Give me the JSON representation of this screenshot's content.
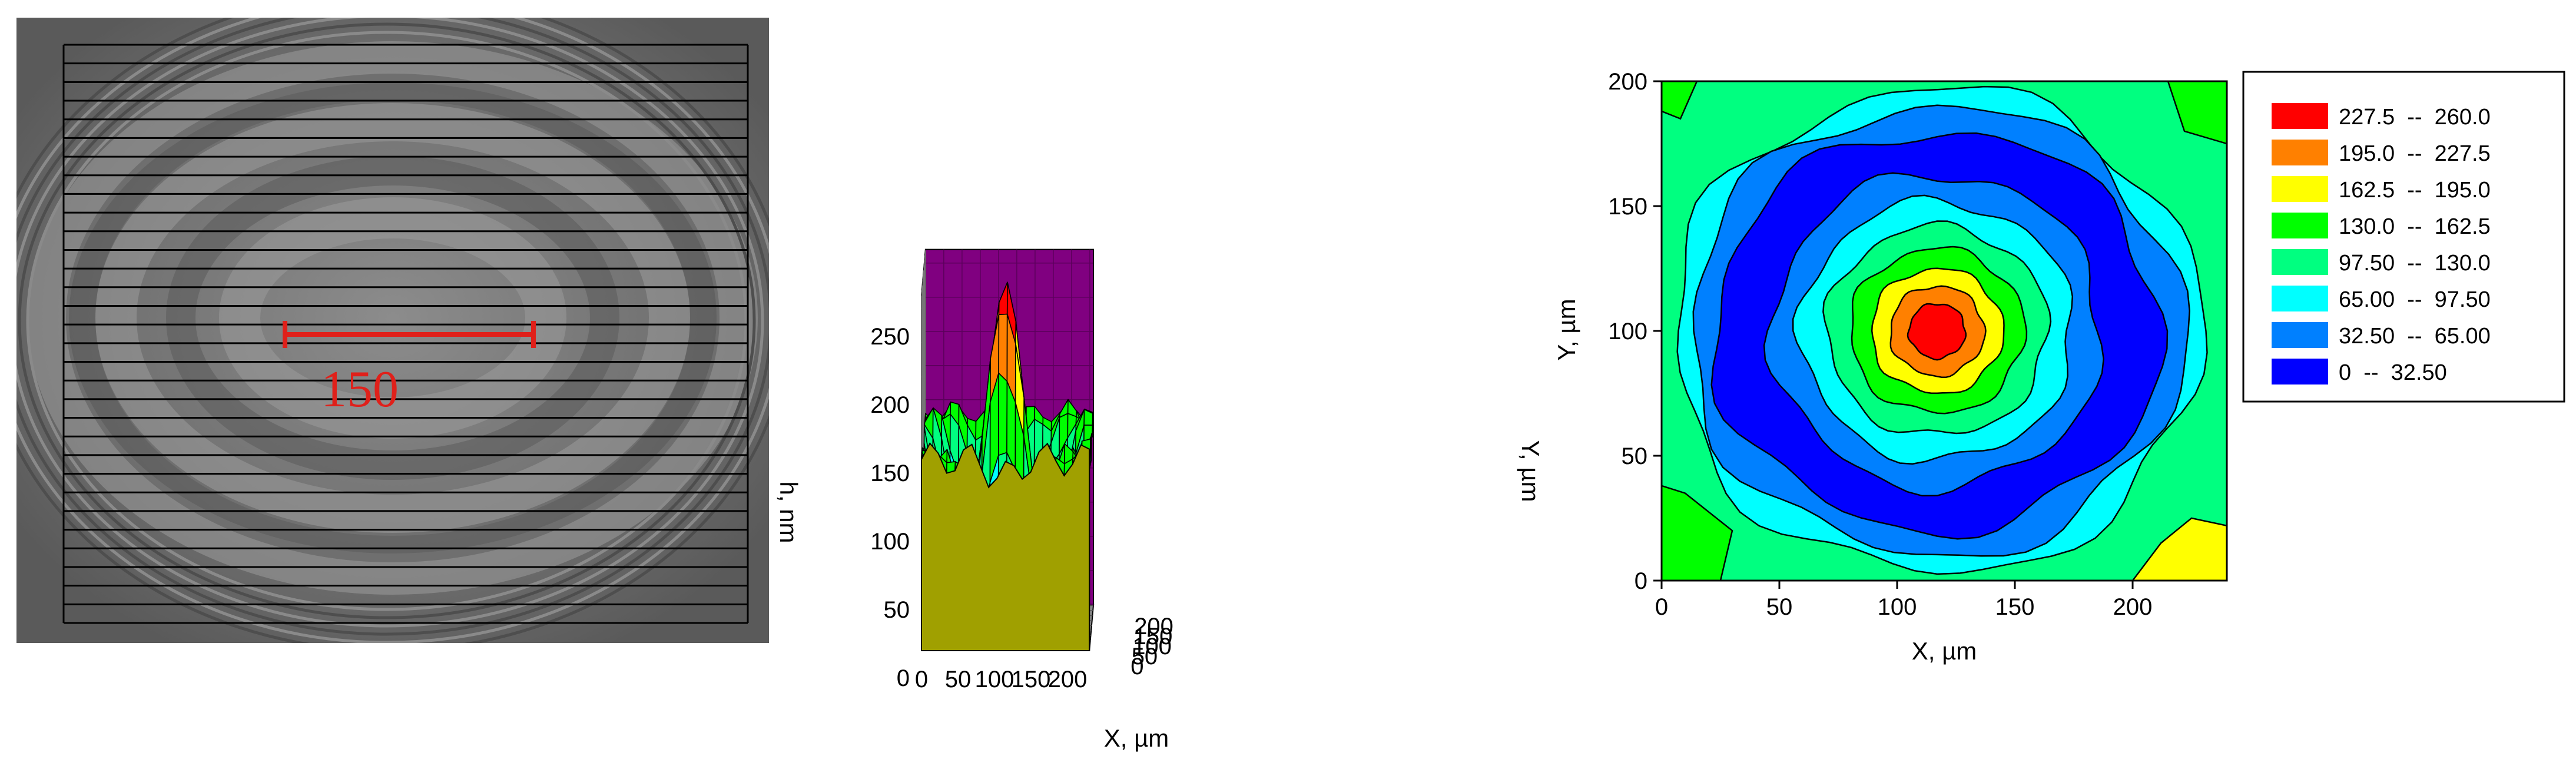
{
  "chart_data": [
    {
      "type": "image",
      "scale_bar": {
        "label": "150",
        "color": "#e0201a"
      },
      "scan_lines": 31
    },
    {
      "type": "surface3d",
      "xlabel": "X, µm",
      "ylabel": "Y, µm",
      "zlabel": "h, nm",
      "x_ticks": [
        "0",
        "50",
        "100",
        "150",
        "200"
      ],
      "y_ticks": [
        "0",
        "50",
        "100",
        "150",
        "200"
      ],
      "z_ticks": [
        "0",
        "50",
        "100",
        "150",
        "200",
        "250"
      ],
      "xlim": [
        0,
        230
      ],
      "ylim": [
        0,
        230
      ],
      "zlim": [
        0,
        260
      ],
      "colors": [
        "#0000ff",
        "#0080ff",
        "#00ffff",
        "#00ff80",
        "#00ff00",
        "#ffff00",
        "#ff8000",
        "#ff0000"
      ]
    },
    {
      "type": "contour",
      "xlabel": "X, µm",
      "ylabel": "Y, µm",
      "x_ticks": [
        "0",
        "50",
        "100",
        "150",
        "200"
      ],
      "y_ticks": [
        "0",
        "50",
        "100",
        "150",
        "200"
      ],
      "xlim": [
        0,
        240
      ],
      "ylim": [
        0,
        200
      ],
      "center": [
        117,
        100
      ],
      "legend_position": "right",
      "levels": [
        {
          "label": "227.5  --  260.0",
          "color": "#ff0000",
          "min": 227.5,
          "max": 260.0
        },
        {
          "label": "195.0  --  227.5",
          "color": "#ff8000",
          "min": 195.0,
          "max": 227.5
        },
        {
          "label": "162.5  --  195.0",
          "color": "#ffff00",
          "min": 162.5,
          "max": 195.0
        },
        {
          "label": "130.0  --  162.5",
          "color": "#00ff00",
          "min": 130.0,
          "max": 162.5
        },
        {
          "label": "97.50  --  130.0",
          "color": "#00ff80",
          "min": 97.5,
          "max": 130.0
        },
        {
          "label": "65.00  --  97.50",
          "color": "#00ffff",
          "min": 65.0,
          "max": 97.5
        },
        {
          "label": "32.50  --  65.00",
          "color": "#0080ff",
          "min": 32.5,
          "max": 65.0
        },
        {
          "label": "0  --  32.50",
          "color": "#0000ff",
          "min": 0,
          "max": 32.5
        }
      ],
      "regions": [
        {
          "level": "97.50  --  130.0",
          "rx": 0,
          "ry": 0
        },
        {
          "level": "65.00  --  97.50",
          "rx": 112,
          "ry": 97
        },
        {
          "level": "32.50  --  65.00",
          "rx": 105,
          "ry": 90
        },
        {
          "level": "0  --  32.50",
          "rx": 95,
          "ry": 80
        },
        {
          "level": "32.50  --  65.00",
          "rx": 70,
          "ry": 63
        },
        {
          "level": "65.00  --  97.50",
          "rx": 58,
          "ry": 52
        },
        {
          "level": "97.50  --  130.0",
          "rx": 47,
          "ry": 42
        },
        {
          "level": "130.0  --  162.5",
          "rx": 37,
          "ry": 33
        },
        {
          "level": "162.5  --  195.0",
          "rx": 28,
          "ry": 25
        },
        {
          "level": "195.0  --  227.5",
          "rx": 20,
          "ry": 18
        },
        {
          "level": "227.5  --  260.0",
          "rx": 12,
          "ry": 11
        }
      ]
    }
  ]
}
